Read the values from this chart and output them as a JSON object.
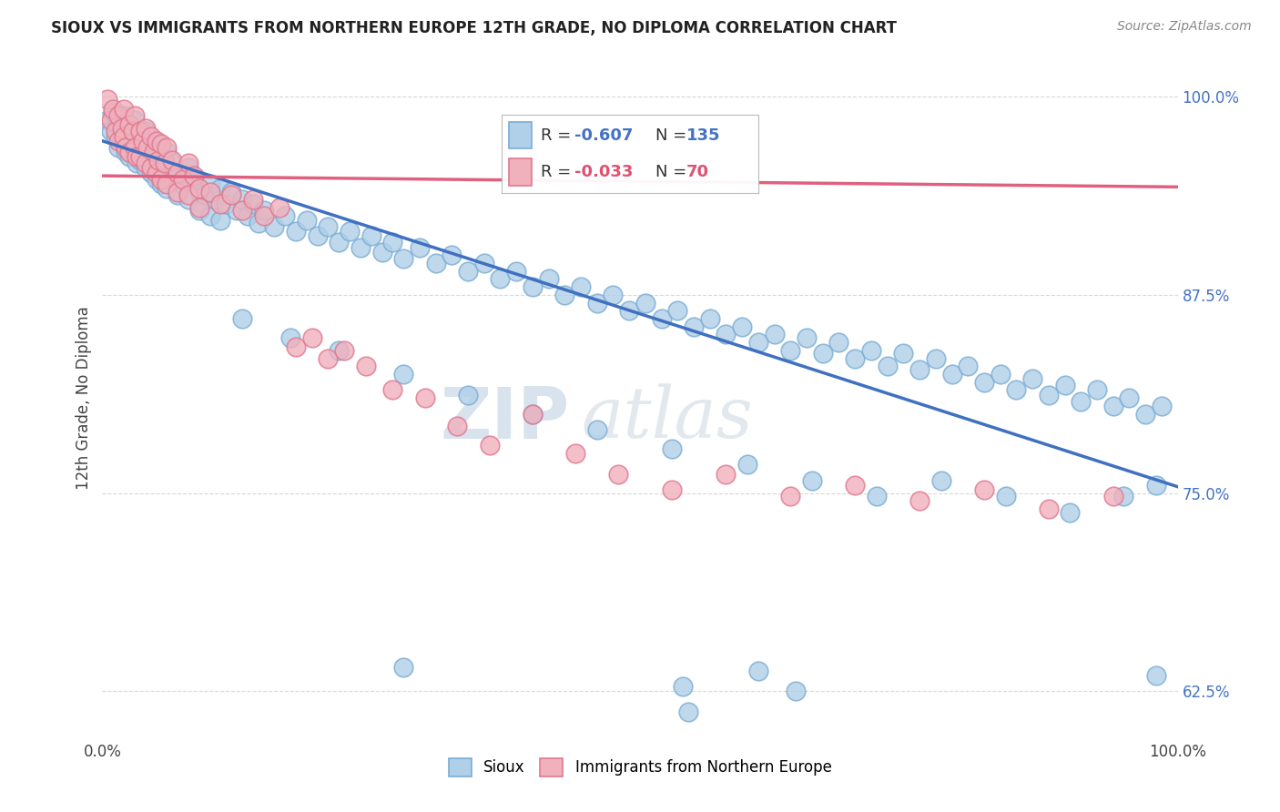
{
  "title": "SIOUX VS IMMIGRANTS FROM NORTHERN EUROPE 12TH GRADE, NO DIPLOMA CORRELATION CHART",
  "source": "Source: ZipAtlas.com",
  "ylabel": "12th Grade, No Diploma",
  "xlabel": "",
  "xlim": [
    0.0,
    1.0
  ],
  "ylim": [
    0.595,
    1.025
  ],
  "yticks": [
    0.625,
    0.75,
    0.875,
    1.0
  ],
  "ytick_labels": [
    "62.5%",
    "75.0%",
    "87.5%",
    "100.0%"
  ],
  "xticks": [
    0.0,
    1.0
  ],
  "xtick_labels": [
    "0.0%",
    "100.0%"
  ],
  "blue_line_y0": 0.972,
  "blue_line_y1": 0.754,
  "pink_line_y0": 0.95,
  "pink_line_y1": 0.943,
  "blue_color_face": "#b0cfe8",
  "blue_color_edge": "#7aadd4",
  "pink_color_face": "#f0b0bc",
  "pink_color_edge": "#e07890",
  "blue_line_color": "#4070c0",
  "pink_line_color": "#e06080",
  "background_color": "#ffffff",
  "grid_color": "#d8d8d8",
  "watermark_zip_color": "#c8d8e8",
  "watermark_atlas_color": "#c8d0d8",
  "blue_scatter": [
    [
      0.005,
      0.985
    ],
    [
      0.008,
      0.978
    ],
    [
      0.01,
      0.99
    ],
    [
      0.012,
      0.975
    ],
    [
      0.015,
      0.982
    ],
    [
      0.015,
      0.968
    ],
    [
      0.018,
      0.975
    ],
    [
      0.02,
      0.988
    ],
    [
      0.02,
      0.97
    ],
    [
      0.022,
      0.965
    ],
    [
      0.025,
      0.978
    ],
    [
      0.025,
      0.962
    ],
    [
      0.028,
      0.972
    ],
    [
      0.03,
      0.985
    ],
    [
      0.03,
      0.965
    ],
    [
      0.032,
      0.958
    ],
    [
      0.035,
      0.975
    ],
    [
      0.035,
      0.96
    ],
    [
      0.038,
      0.968
    ],
    [
      0.04,
      0.978
    ],
    [
      0.04,
      0.955
    ],
    [
      0.042,
      0.965
    ],
    [
      0.045,
      0.972
    ],
    [
      0.045,
      0.952
    ],
    [
      0.048,
      0.962
    ],
    [
      0.05,
      0.97
    ],
    [
      0.05,
      0.948
    ],
    [
      0.052,
      0.958
    ],
    [
      0.055,
      0.968
    ],
    [
      0.055,
      0.945
    ],
    [
      0.058,
      0.955
    ],
    [
      0.06,
      0.965
    ],
    [
      0.06,
      0.942
    ],
    [
      0.065,
      0.958
    ],
    [
      0.07,
      0.95
    ],
    [
      0.07,
      0.938
    ],
    [
      0.075,
      0.945
    ],
    [
      0.08,
      0.955
    ],
    [
      0.08,
      0.935
    ],
    [
      0.085,
      0.948
    ],
    [
      0.09,
      0.94
    ],
    [
      0.09,
      0.928
    ],
    [
      0.095,
      0.938
    ],
    [
      0.1,
      0.945
    ],
    [
      0.1,
      0.925
    ],
    [
      0.105,
      0.935
    ],
    [
      0.11,
      0.942
    ],
    [
      0.11,
      0.922
    ],
    [
      0.115,
      0.932
    ],
    [
      0.12,
      0.94
    ],
    [
      0.125,
      0.928
    ],
    [
      0.13,
      0.935
    ],
    [
      0.135,
      0.925
    ],
    [
      0.14,
      0.932
    ],
    [
      0.145,
      0.92
    ],
    [
      0.15,
      0.928
    ],
    [
      0.16,
      0.918
    ],
    [
      0.17,
      0.925
    ],
    [
      0.18,
      0.915
    ],
    [
      0.19,
      0.922
    ],
    [
      0.2,
      0.912
    ],
    [
      0.21,
      0.918
    ],
    [
      0.22,
      0.908
    ],
    [
      0.23,
      0.915
    ],
    [
      0.24,
      0.905
    ],
    [
      0.25,
      0.912
    ],
    [
      0.26,
      0.902
    ],
    [
      0.27,
      0.908
    ],
    [
      0.28,
      0.898
    ],
    [
      0.295,
      0.905
    ],
    [
      0.31,
      0.895
    ],
    [
      0.325,
      0.9
    ],
    [
      0.34,
      0.89
    ],
    [
      0.355,
      0.895
    ],
    [
      0.37,
      0.885
    ],
    [
      0.385,
      0.89
    ],
    [
      0.4,
      0.88
    ],
    [
      0.415,
      0.885
    ],
    [
      0.43,
      0.875
    ],
    [
      0.445,
      0.88
    ],
    [
      0.46,
      0.87
    ],
    [
      0.475,
      0.875
    ],
    [
      0.49,
      0.865
    ],
    [
      0.505,
      0.87
    ],
    [
      0.52,
      0.86
    ],
    [
      0.535,
      0.865
    ],
    [
      0.55,
      0.855
    ],
    [
      0.565,
      0.86
    ],
    [
      0.58,
      0.85
    ],
    [
      0.595,
      0.855
    ],
    [
      0.61,
      0.845
    ],
    [
      0.625,
      0.85
    ],
    [
      0.64,
      0.84
    ],
    [
      0.655,
      0.848
    ],
    [
      0.67,
      0.838
    ],
    [
      0.685,
      0.845
    ],
    [
      0.7,
      0.835
    ],
    [
      0.715,
      0.84
    ],
    [
      0.73,
      0.83
    ],
    [
      0.745,
      0.838
    ],
    [
      0.76,
      0.828
    ],
    [
      0.775,
      0.835
    ],
    [
      0.79,
      0.825
    ],
    [
      0.805,
      0.83
    ],
    [
      0.82,
      0.82
    ],
    [
      0.835,
      0.825
    ],
    [
      0.85,
      0.815
    ],
    [
      0.865,
      0.822
    ],
    [
      0.88,
      0.812
    ],
    [
      0.895,
      0.818
    ],
    [
      0.91,
      0.808
    ],
    [
      0.925,
      0.815
    ],
    [
      0.94,
      0.805
    ],
    [
      0.955,
      0.81
    ],
    [
      0.97,
      0.8
    ],
    [
      0.985,
      0.805
    ],
    [
      0.13,
      0.86
    ],
    [
      0.175,
      0.848
    ],
    [
      0.22,
      0.84
    ],
    [
      0.28,
      0.825
    ],
    [
      0.34,
      0.812
    ],
    [
      0.4,
      0.8
    ],
    [
      0.46,
      0.79
    ],
    [
      0.53,
      0.778
    ],
    [
      0.6,
      0.768
    ],
    [
      0.66,
      0.758
    ],
    [
      0.72,
      0.748
    ],
    [
      0.78,
      0.758
    ],
    [
      0.84,
      0.748
    ],
    [
      0.9,
      0.738
    ],
    [
      0.95,
      0.748
    ],
    [
      0.98,
      0.755
    ],
    [
      0.28,
      0.64
    ],
    [
      0.54,
      0.628
    ],
    [
      0.545,
      0.612
    ],
    [
      0.61,
      0.638
    ],
    [
      0.645,
      0.625
    ],
    [
      0.98,
      0.635
    ]
  ],
  "pink_scatter": [
    [
      0.005,
      0.998
    ],
    [
      0.008,
      0.985
    ],
    [
      0.01,
      0.992
    ],
    [
      0.012,
      0.978
    ],
    [
      0.015,
      0.988
    ],
    [
      0.015,
      0.972
    ],
    [
      0.018,
      0.98
    ],
    [
      0.02,
      0.992
    ],
    [
      0.02,
      0.975
    ],
    [
      0.022,
      0.968
    ],
    [
      0.025,
      0.982
    ],
    [
      0.025,
      0.965
    ],
    [
      0.028,
      0.978
    ],
    [
      0.03,
      0.988
    ],
    [
      0.03,
      0.968
    ],
    [
      0.032,
      0.962
    ],
    [
      0.035,
      0.978
    ],
    [
      0.035,
      0.962
    ],
    [
      0.038,
      0.972
    ],
    [
      0.04,
      0.98
    ],
    [
      0.04,
      0.958
    ],
    [
      0.042,
      0.968
    ],
    [
      0.045,
      0.975
    ],
    [
      0.045,
      0.955
    ],
    [
      0.048,
      0.965
    ],
    [
      0.05,
      0.972
    ],
    [
      0.05,
      0.952
    ],
    [
      0.052,
      0.96
    ],
    [
      0.055,
      0.97
    ],
    [
      0.055,
      0.948
    ],
    [
      0.058,
      0.958
    ],
    [
      0.06,
      0.968
    ],
    [
      0.06,
      0.945
    ],
    [
      0.065,
      0.96
    ],
    [
      0.07,
      0.952
    ],
    [
      0.07,
      0.94
    ],
    [
      0.075,
      0.948
    ],
    [
      0.08,
      0.958
    ],
    [
      0.08,
      0.938
    ],
    [
      0.085,
      0.95
    ],
    [
      0.09,
      0.942
    ],
    [
      0.09,
      0.93
    ],
    [
      0.1,
      0.94
    ],
    [
      0.11,
      0.932
    ],
    [
      0.12,
      0.938
    ],
    [
      0.13,
      0.928
    ],
    [
      0.14,
      0.935
    ],
    [
      0.15,
      0.925
    ],
    [
      0.165,
      0.93
    ],
    [
      0.18,
      0.842
    ],
    [
      0.195,
      0.848
    ],
    [
      0.21,
      0.835
    ],
    [
      0.225,
      0.84
    ],
    [
      0.245,
      0.83
    ],
    [
      0.27,
      0.815
    ],
    [
      0.3,
      0.81
    ],
    [
      0.33,
      0.792
    ],
    [
      0.36,
      0.78
    ],
    [
      0.4,
      0.8
    ],
    [
      0.44,
      0.775
    ],
    [
      0.48,
      0.762
    ],
    [
      0.53,
      0.752
    ],
    [
      0.58,
      0.762
    ],
    [
      0.64,
      0.748
    ],
    [
      0.7,
      0.755
    ],
    [
      0.76,
      0.745
    ],
    [
      0.82,
      0.752
    ],
    [
      0.88,
      0.74
    ],
    [
      0.94,
      0.748
    ]
  ]
}
